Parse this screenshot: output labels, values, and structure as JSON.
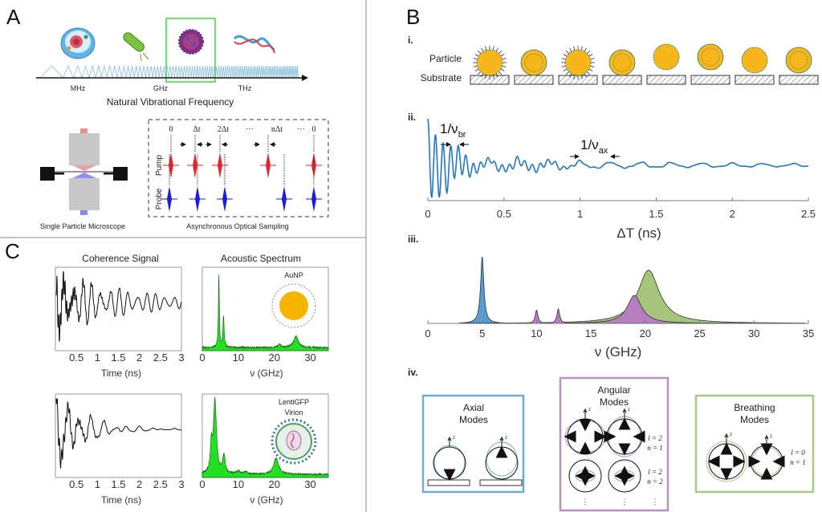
{
  "panels": {
    "A": {
      "label": "A",
      "freq_labels": [
        "MHz",
        "GHz",
        "THz"
      ],
      "freq_title": "Natural Vibrational Frequency",
      "highlight_color": "#3ddc3d",
      "microscope_label": "Single Particle Microscope",
      "aos_label": "Asynchronous Optical Sampling",
      "delay_labels": [
        "0",
        "Δt",
        "2Δt",
        "···",
        "nΔt",
        "···",
        "0"
      ],
      "pump_label": "Pump",
      "probe_label": "Probe",
      "pump_color": "#e8242a",
      "probe_color": "#1a1ae0",
      "icons": [
        "cell-icon",
        "bacterium-icon",
        "virus-icon",
        "dna-icon"
      ]
    },
    "B": {
      "label": "B",
      "sub_i": "i.",
      "sub_ii": "ii.",
      "sub_iii": "iii.",
      "sub_iv": "iv.",
      "particle_label": "Particle",
      "substrate_label": "Substrate",
      "particle_color": "#f7b71c",
      "modes": {
        "axial": {
          "title1": "Axial",
          "title2": "Modes",
          "color": "#6aaed6"
        },
        "angular": {
          "title1": "Angular",
          "title2": "Modes",
          "color": "#b98fc4",
          "row1": {
            "l": "l = 2",
            "n": "n = 1"
          },
          "row2": {
            "l": "l = 2",
            "n": "n = 2"
          },
          "more": "⋮"
        },
        "breathing": {
          "title1": "Breathing",
          "title2": "Modes",
          "color": "#a9c98a",
          "row1": {
            "l": "l = 0",
            "n": "n = 1"
          }
        },
        "axis_label": "z"
      }
    },
    "C": {
      "label": "C",
      "col1_title": "Coherence Signal",
      "col2_title": "Acoustic Spectrum",
      "inset_top": "AuNP",
      "inset_bottom_1": "LentiGFP",
      "inset_bottom_2": "Virion"
    }
  },
  "chart_data": [
    {
      "id": "B-ii",
      "type": "line",
      "xlabel": "ΔT  (ns)",
      "xlim": [
        0,
        2.5
      ],
      "xticks": [
        "0",
        "0.5",
        "1",
        "1.5",
        "2",
        "2.5"
      ],
      "color": "#1f78c8",
      "annotations": [
        {
          "main": "1/ν",
          "sub": "br"
        },
        {
          "main": "1/ν",
          "sub": "ax"
        }
      ]
    },
    {
      "id": "B-iii",
      "type": "area",
      "xlabel": "ν (GHz)",
      "xlim": [
        0,
        35
      ],
      "xticks": [
        "0",
        "5",
        "10",
        "15",
        "20",
        "25",
        "30",
        "35"
      ],
      "peaks": [
        {
          "mode": "breathing",
          "center": 20.3,
          "amplitude": 0.8,
          "width": 1.2,
          "color": "#a5c57a"
        },
        {
          "mode": "angular",
          "center": 19.0,
          "amplitude": 0.42,
          "width": 0.8,
          "color": "#b57fc0"
        },
        {
          "mode": "angular",
          "center": 10.0,
          "amplitude": 0.2,
          "width": 0.15,
          "color": "#b57fc0"
        },
        {
          "mode": "angular",
          "center": 12.0,
          "amplitude": 0.22,
          "width": 0.15,
          "color": "#b57fc0"
        },
        {
          "mode": "axial",
          "center": 5.0,
          "amplitude": 1.0,
          "width": 0.18,
          "color": "#5b9bd0"
        }
      ]
    },
    {
      "id": "C-coherence-top",
      "type": "line",
      "xlabel": "Time (ns)",
      "xlim": [
        0,
        3
      ],
      "xticks": [
        "0.5",
        "1",
        "1.5",
        "2",
        "2.5",
        "3"
      ]
    },
    {
      "id": "C-spectrum-top",
      "type": "area",
      "xlabel": "ν (GHz)",
      "xlim": [
        0,
        35
      ],
      "xticks": [
        "0",
        "10",
        "20",
        "30"
      ],
      "color": "#22e022",
      "peaks": [
        {
          "center": 4.6,
          "amplitude": 1.0,
          "width": 0.15
        },
        {
          "center": 5.9,
          "amplitude": 0.42,
          "width": 0.2
        },
        {
          "center": 21.5,
          "amplitude": 0.05,
          "width": 0.4
        },
        {
          "center": 26.0,
          "amplitude": 0.15,
          "width": 0.8
        }
      ]
    },
    {
      "id": "C-coherence-bottom",
      "type": "line",
      "xlabel": "Time (ns)",
      "xlim": [
        0,
        3
      ],
      "xticks": [
        "0.5",
        "1",
        "1.5",
        "2",
        "2.5",
        "3"
      ]
    },
    {
      "id": "C-spectrum-bottom",
      "type": "area",
      "xlabel": "ν (GHz)",
      "xlim": [
        0,
        35
      ],
      "xticks": [
        "0",
        "10",
        "20",
        "30"
      ],
      "color": "#22e022",
      "peaks": [
        {
          "center": 2.5,
          "amplitude": 0.35,
          "width": 0.3
        },
        {
          "center": 3.5,
          "amplitude": 1.0,
          "width": 0.5
        },
        {
          "center": 6.0,
          "amplitude": 0.25,
          "width": 0.4
        },
        {
          "center": 10.0,
          "amplitude": 0.04,
          "width": 0.6
        },
        {
          "center": 12.0,
          "amplitude": 0.03,
          "width": 0.6
        },
        {
          "center": 20.5,
          "amplitude": 0.22,
          "width": 0.8
        }
      ]
    }
  ]
}
